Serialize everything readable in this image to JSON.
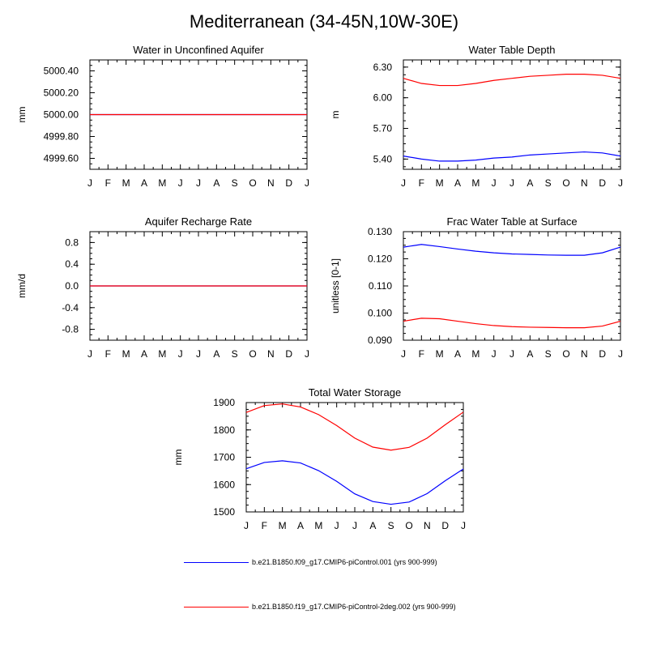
{
  "figure": {
    "title": "Mediterranean (34-45N,10W-30E)",
    "series_colors": [
      "#0000ff",
      "#ff0000"
    ]
  },
  "legend": [
    {
      "label": "b.e21.B1850.f09_g17.CMIP6-piControl.001 (yrs 900-999)",
      "color": "#0000ff"
    },
    {
      "label": "b.e21.B1850.f19_g17.CMIP6-piControl-2deg.002 (yrs 900-999)",
      "color": "#ff0000"
    }
  ],
  "chart_data": [
    {
      "id": "aquifer",
      "type": "line",
      "title": "Water in Unconfined Aquifer",
      "ylabel": "mm",
      "ylim": [
        4999.5,
        5000.5
      ],
      "yticks": [
        5000.4,
        5000.2,
        5000.0,
        4999.8,
        4999.6
      ],
      "ytick_labels": [
        "5000.40",
        "5000.20",
        "5000.00",
        "4999.80",
        "4999.60"
      ],
      "categories": [
        "J",
        "F",
        "M",
        "A",
        "M",
        "J",
        "J",
        "A",
        "S",
        "O",
        "N",
        "D",
        "J"
      ],
      "series": [
        {
          "name": "b.e21.B1850.f09_g17.CMIP6-piControl.001 (yrs 900-999)",
          "color": "#0000ff",
          "values": [
            5000,
            5000,
            5000,
            5000,
            5000,
            5000,
            5000,
            5000,
            5000,
            5000,
            5000,
            5000,
            5000
          ]
        },
        {
          "name": "b.e21.B1850.f19_g17.CMIP6-piControl-2deg.002 (yrs 900-999)",
          "color": "#ff0000",
          "values": [
            5000,
            5000,
            5000,
            5000,
            5000,
            5000,
            5000,
            5000,
            5000,
            5000,
            5000,
            5000,
            5000
          ]
        }
      ]
    },
    {
      "id": "wtd",
      "type": "line",
      "title": "Water Table Depth",
      "ylabel": "m",
      "ylim": [
        5.3,
        6.37
      ],
      "yticks": [
        6.3,
        6.0,
        5.7,
        5.4
      ],
      "ytick_labels": [
        "6.30",
        "6.00",
        "5.70",
        "5.40"
      ],
      "categories": [
        "J",
        "F",
        "M",
        "A",
        "M",
        "J",
        "J",
        "A",
        "S",
        "O",
        "N",
        "D",
        "J"
      ],
      "series": [
        {
          "name": "b.e21.B1850.f09_g17.CMIP6-piControl.001 (yrs 900-999)",
          "color": "#0000ff",
          "values": [
            5.43,
            5.4,
            5.38,
            5.38,
            5.39,
            5.41,
            5.42,
            5.44,
            5.45,
            5.46,
            5.47,
            5.46,
            5.43
          ]
        },
        {
          "name": "b.e21.B1850.f19_g17.CMIP6-piControl-2deg.002 (yrs 900-999)",
          "color": "#ff0000",
          "values": [
            6.19,
            6.14,
            6.12,
            6.12,
            6.14,
            6.17,
            6.19,
            6.21,
            6.22,
            6.23,
            6.23,
            6.22,
            6.19
          ]
        }
      ]
    },
    {
      "id": "recharge",
      "type": "line",
      "title": "Aquifer Recharge Rate",
      "ylabel": "mm/d",
      "ylim": [
        -1.0,
        1.0
      ],
      "yticks": [
        0.8,
        0.4,
        0.0,
        -0.4,
        -0.8
      ],
      "ytick_labels": [
        "0.8",
        "0.4",
        "0.0",
        "-0.4",
        "-0.8"
      ],
      "categories": [
        "J",
        "F",
        "M",
        "A",
        "M",
        "J",
        "J",
        "A",
        "S",
        "O",
        "N",
        "D",
        "J"
      ],
      "series": [
        {
          "name": "b.e21.B1850.f09_g17.CMIP6-piControl.001 (yrs 900-999)",
          "color": "#0000ff",
          "values": [
            0,
            0,
            0,
            0,
            0,
            0,
            0,
            0,
            0,
            0,
            0,
            0,
            0
          ]
        },
        {
          "name": "b.e21.B1850.f19_g17.CMIP6-piControl-2deg.002 (yrs 900-999)",
          "color": "#ff0000",
          "values": [
            0,
            0,
            0,
            0,
            0,
            0,
            0,
            0,
            0,
            0,
            0,
            0,
            0
          ]
        }
      ]
    },
    {
      "id": "frac",
      "type": "line",
      "title": "Frac Water Table at Surface",
      "ylabel": "unitless [0-1]",
      "ylim": [
        0.09,
        0.13
      ],
      "yticks": [
        0.13,
        0.12,
        0.11,
        0.1,
        0.09
      ],
      "ytick_labels": [
        "0.130",
        "0.120",
        "0.110",
        "0.100",
        "0.090"
      ],
      "categories": [
        "J",
        "F",
        "M",
        "A",
        "M",
        "J",
        "J",
        "A",
        "S",
        "O",
        "N",
        "D",
        "J"
      ],
      "series": [
        {
          "name": "b.e21.B1850.f09_g17.CMIP6-piControl.001 (yrs 900-999)",
          "color": "#0000ff",
          "values": [
            0.1243,
            0.1253,
            0.1245,
            0.1236,
            0.1228,
            0.1222,
            0.1218,
            0.1216,
            0.1214,
            0.1213,
            0.1213,
            0.1222,
            0.1243
          ]
        },
        {
          "name": "b.e21.B1850.f19_g17.CMIP6-piControl-2deg.002 (yrs 900-999)",
          "color": "#ff0000",
          "values": [
            0.097,
            0.0981,
            0.0979,
            0.097,
            0.0961,
            0.0954,
            0.095,
            0.0948,
            0.0947,
            0.0946,
            0.0946,
            0.0952,
            0.097
          ]
        }
      ]
    },
    {
      "id": "tws",
      "type": "line",
      "title": "Total Water Storage",
      "ylabel": "mm",
      "ylim": [
        1500,
        1900
      ],
      "yticks": [
        1900,
        1800,
        1700,
        1600,
        1500
      ],
      "ytick_labels": [
        "1900",
        "1800",
        "1700",
        "1600",
        "1500"
      ],
      "categories": [
        "J",
        "F",
        "M",
        "A",
        "M",
        "J",
        "J",
        "A",
        "S",
        "O",
        "N",
        "D",
        "J"
      ],
      "series": [
        {
          "name": "b.e21.B1850.f09_g17.CMIP6-piControl.001 (yrs 900-999)",
          "color": "#0000ff",
          "values": [
            1658,
            1681,
            1687,
            1679,
            1651,
            1612,
            1566,
            1538,
            1528,
            1536,
            1567,
            1614,
            1657
          ]
        },
        {
          "name": "b.e21.B1850.f19_g17.CMIP6-piControl-2deg.002 (yrs 900-999)",
          "color": "#ff0000",
          "values": [
            1864,
            1889,
            1895,
            1884,
            1856,
            1816,
            1770,
            1737,
            1726,
            1736,
            1770,
            1819,
            1865
          ]
        }
      ]
    }
  ]
}
